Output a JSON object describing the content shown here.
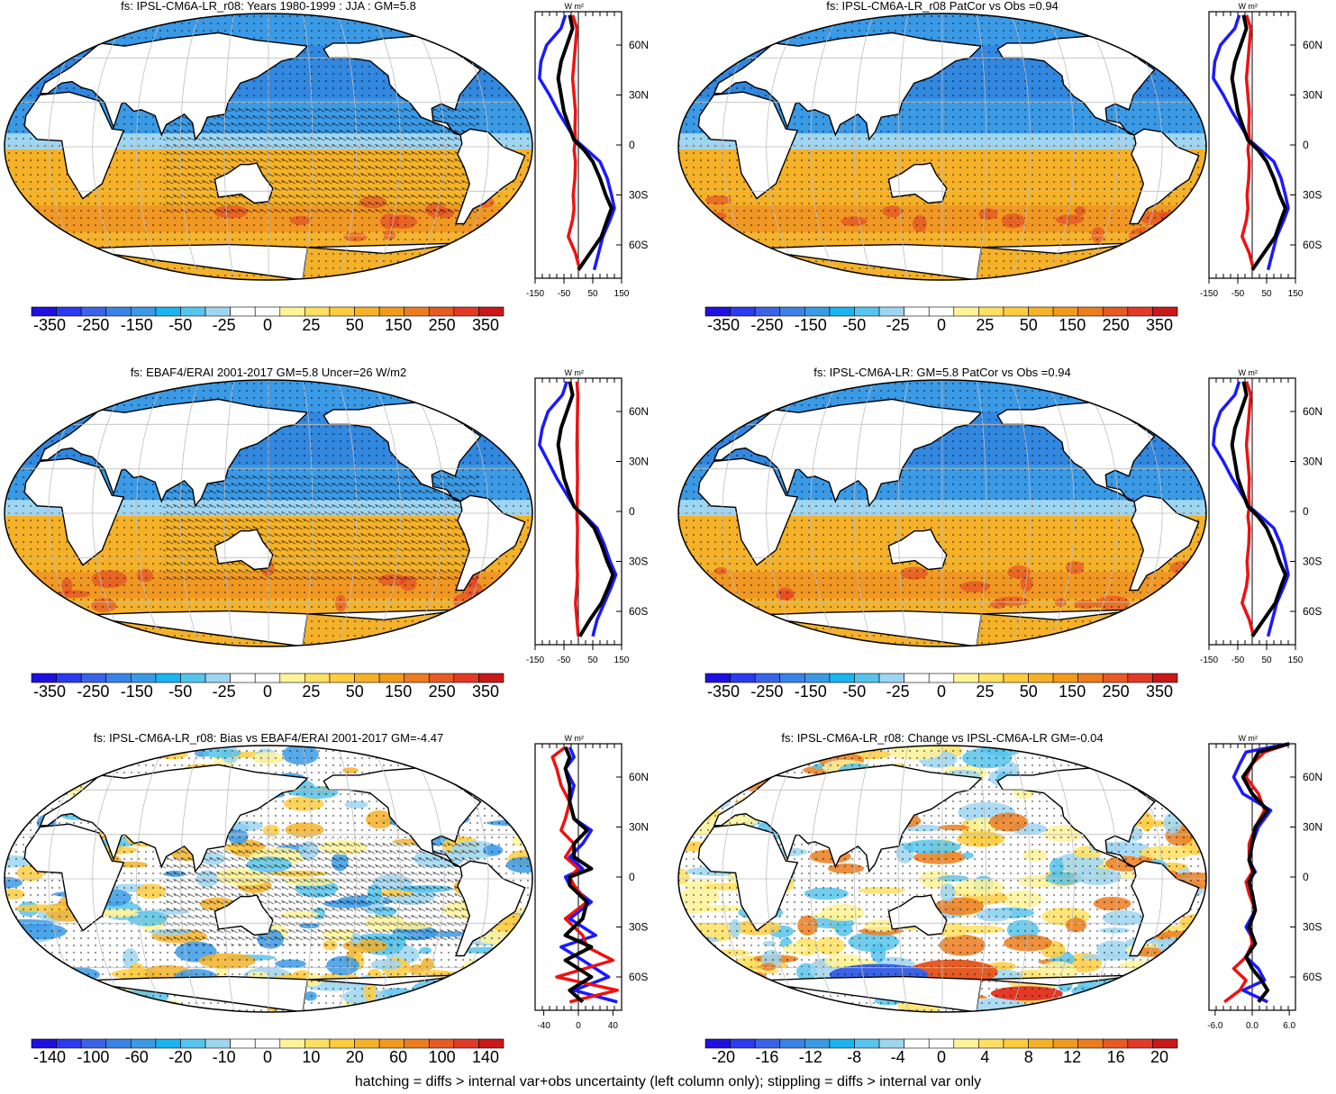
{
  "footnote": "hatching = diffs > internal var+obs uncertainty (left column only); stippling = diffs > internal var only",
  "colors": {
    "blue_line": "#1a1aff",
    "red_line": "#ee1111",
    "black_line": "#000000",
    "ocean_cool": "#3b9ae6",
    "ocean_warm": "#f5b228",
    "palette": [
      "#2010e0",
      "#2a3bf0",
      "#3a63e8",
      "#3a82e6",
      "#3b9ae6",
      "#1ab4f0",
      "#56c4ec",
      "#9ed6f2",
      "#ffffff",
      "#ffffff",
      "#fff39a",
      "#ffe063",
      "#ffcc40",
      "#f5b228",
      "#f19a1c",
      "#eb7d1e",
      "#e65a24",
      "#e23a26",
      "#c81818"
    ]
  },
  "chart_data": [
    {
      "type": "heatmap",
      "title": "fs: IPSL-CM6A-LR_r08: Years 1980-1999 : JJA : GM=5.8",
      "colorbar_labels": [
        "-350",
        "-250",
        "-150",
        "-50",
        "-25",
        "0",
        "25",
        "50",
        "150",
        "250",
        "350"
      ],
      "profile": {
        "unit": "W m²",
        "lat_ticks": [
          "60N",
          "30N",
          "0",
          "30S",
          "60S"
        ],
        "x_ticks": [
          "-150",
          "-50",
          "50",
          "150"
        ],
        "xlim": [
          -150,
          150
        ],
        "series": [
          {
            "color": "blue",
            "lat": [
              -75,
              -65,
              -55,
              -45,
              -38,
              -30,
              -20,
              -10,
              -3,
              3,
              10,
              20,
              30,
              40,
              50,
              60,
              70,
              78
            ],
            "values": [
              55,
              70,
              85,
              110,
              125,
              115,
              100,
              75,
              30,
              -10,
              -35,
              -70,
              -100,
              -135,
              -130,
              -110,
              -60,
              -45
            ]
          },
          {
            "color": "red",
            "lat": [
              -75,
              -65,
              -55,
              -45,
              -38,
              -30,
              -20,
              -10,
              -3,
              3,
              10,
              20,
              30,
              40,
              50,
              60,
              70,
              78
            ],
            "values": [
              5,
              -10,
              -35,
              -20,
              -15,
              -18,
              -12,
              -10,
              -15,
              -10,
              -12,
              -10,
              -15,
              -20,
              -15,
              -10,
              -5,
              -20
            ]
          },
          {
            "color": "black",
            "lat": [
              -75,
              -65,
              -55,
              -45,
              -38,
              -30,
              -20,
              -10,
              -3,
              3,
              10,
              20,
              30,
              40,
              50,
              60,
              70,
              78
            ],
            "values": [
              0,
              40,
              80,
              100,
              115,
              95,
              75,
              50,
              20,
              -15,
              -30,
              -50,
              -60,
              -70,
              -60,
              -40,
              -20,
              -30
            ]
          }
        ]
      }
    },
    {
      "type": "heatmap",
      "title": "fs: IPSL-CM6A-LR_r08 PatCor vs Obs =0.94",
      "colorbar_labels": [
        "-350",
        "-250",
        "-150",
        "-50",
        "-25",
        "0",
        "25",
        "50",
        "150",
        "250",
        "350"
      ],
      "profile": {
        "unit": "W m²",
        "lat_ticks": [
          "60N",
          "30N",
          "0",
          "30S",
          "60S"
        ],
        "x_ticks": [
          "-150",
          "-50",
          "50",
          "150"
        ],
        "xlim": [
          -150,
          150
        ],
        "series": [
          {
            "color": "blue",
            "lat": [
              -75,
              -65,
              -55,
              -45,
              -38,
              -30,
              -20,
              -10,
              -3,
              3,
              10,
              20,
              30,
              40,
              50,
              60,
              70,
              78
            ],
            "values": [
              55,
              70,
              85,
              110,
              125,
              115,
              100,
              75,
              30,
              -10,
              -35,
              -70,
              -100,
              -135,
              -130,
              -110,
              -60,
              -45
            ]
          },
          {
            "color": "red",
            "lat": [
              -75,
              -65,
              -55,
              -45,
              -38,
              -30,
              -20,
              -10,
              -3,
              3,
              10,
              20,
              30,
              40,
              50,
              60,
              70,
              78
            ],
            "values": [
              5,
              -10,
              -35,
              -20,
              -15,
              -18,
              -12,
              -10,
              -15,
              -10,
              -12,
              -10,
              -15,
              -20,
              -15,
              -10,
              -5,
              -20
            ]
          },
          {
            "color": "black",
            "lat": [
              -75,
              -65,
              -55,
              -45,
              -38,
              -30,
              -20,
              -10,
              -3,
              3,
              10,
              20,
              30,
              40,
              50,
              60,
              70,
              78
            ],
            "values": [
              0,
              40,
              80,
              100,
              115,
              95,
              75,
              50,
              20,
              -15,
              -30,
              -50,
              -60,
              -70,
              -60,
              -40,
              -20,
              -30
            ]
          }
        ]
      }
    },
    {
      "type": "heatmap",
      "title": "fs: EBAF4/ERAI 2001-2017 GM=5.8 Uncer=26 W/m2",
      "colorbar_labels": [
        "-350",
        "-250",
        "-150",
        "-50",
        "-25",
        "0",
        "25",
        "50",
        "150",
        "250",
        "350"
      ],
      "profile": {
        "unit": "W m²",
        "lat_ticks": [
          "60N",
          "30N",
          "0",
          "30S",
          "60S"
        ],
        "x_ticks": [
          "-150",
          "-50",
          "50",
          "150"
        ],
        "xlim": [
          -150,
          150
        ],
        "series": [
          {
            "color": "blue",
            "lat": [
              -75,
              -65,
              -55,
              -45,
              -38,
              -30,
              -20,
              -10,
              -3,
              3,
              10,
              20,
              30,
              40,
              50,
              60,
              70,
              78
            ],
            "values": [
              50,
              65,
              90,
              115,
              130,
              110,
              90,
              65,
              25,
              -15,
              -40,
              -75,
              -105,
              -135,
              -125,
              -105,
              -55,
              -40
            ]
          },
          {
            "color": "red",
            "lat": [
              -75,
              -65,
              -55,
              -45,
              -38,
              -30,
              -20,
              -10,
              -3,
              3,
              10,
              20,
              30,
              40,
              50,
              60,
              70,
              78
            ],
            "values": [
              0,
              -5,
              -10,
              -5,
              -3,
              -5,
              -4,
              -3,
              -5,
              -4,
              -4,
              -3,
              -4,
              -5,
              -4,
              -3,
              -2,
              -5
            ]
          },
          {
            "color": "black",
            "lat": [
              -75,
              -65,
              -55,
              -45,
              -38,
              -30,
              -20,
              -10,
              -3,
              3,
              10,
              20,
              30,
              40,
              50,
              60,
              70,
              78
            ],
            "values": [
              5,
              40,
              80,
              105,
              120,
              100,
              80,
              55,
              20,
              -15,
              -30,
              -50,
              -60,
              -70,
              -60,
              -40,
              -20,
              -30
            ]
          }
        ]
      }
    },
    {
      "type": "heatmap",
      "title": "fs: IPSL-CM6A-LR: GM=5.8 PatCor vs Obs =0.94",
      "colorbar_labels": [
        "-350",
        "-250",
        "-150",
        "-50",
        "-25",
        "0",
        "25",
        "50",
        "150",
        "250",
        "350"
      ],
      "profile": {
        "unit": "W m²",
        "lat_ticks": [
          "60N",
          "30N",
          "0",
          "30S",
          "60S"
        ],
        "x_ticks": [
          "-150",
          "-50",
          "50",
          "150"
        ],
        "xlim": [
          -150,
          150
        ],
        "series": [
          {
            "color": "blue",
            "lat": [
              -75,
              -65,
              -55,
              -45,
              -38,
              -30,
              -20,
              -10,
              -3,
              3,
              10,
              20,
              30,
              40,
              50,
              60,
              70,
              78
            ],
            "values": [
              55,
              70,
              85,
              110,
              125,
              115,
              100,
              75,
              30,
              -10,
              -35,
              -70,
              -100,
              -135,
              -130,
              -110,
              -60,
              -45
            ]
          },
          {
            "color": "red",
            "lat": [
              -75,
              -65,
              -55,
              -45,
              -38,
              -30,
              -20,
              -10,
              -3,
              3,
              10,
              20,
              30,
              40,
              50,
              60,
              70,
              78
            ],
            "values": [
              5,
              -10,
              -35,
              -20,
              -15,
              -18,
              -12,
              -10,
              -15,
              -10,
              -12,
              -10,
              -15,
              -20,
              -15,
              -10,
              -5,
              -20
            ]
          },
          {
            "color": "black",
            "lat": [
              -75,
              -65,
              -55,
              -45,
              -38,
              -30,
              -20,
              -10,
              -3,
              3,
              10,
              20,
              30,
              40,
              50,
              60,
              70,
              78
            ],
            "values": [
              0,
              40,
              80,
              100,
              115,
              95,
              75,
              50,
              20,
              -15,
              -30,
              -50,
              -60,
              -70,
              -60,
              -40,
              -20,
              -30
            ]
          }
        ]
      }
    },
    {
      "type": "heatmap",
      "title": "fs: IPSL-CM6A-LR_r08: Bias vs EBAF4/ERAI 2001-2017 GM=-4.47",
      "colorbar_labels": [
        "-140",
        "-100",
        "-60",
        "-20",
        "-10",
        "0",
        "10",
        "20",
        "60",
        "100",
        "140"
      ],
      "profile": {
        "unit": "W m²",
        "lat_ticks": [
          "60N",
          "30N",
          "0",
          "30S",
          "60S"
        ],
        "x_ticks": [
          "-40",
          "0",
          "40"
        ],
        "xlim": [
          -50,
          50
        ],
        "series": [
          {
            "color": "blue",
            "lat": [
              -75,
              -68,
              -60,
              -50,
              -42,
              -35,
              -25,
              -15,
              -5,
              0,
              5,
              12,
              20,
              28,
              35,
              45,
              55,
              65,
              72,
              78
            ],
            "values": [
              45,
              -5,
              35,
              5,
              -20,
              20,
              -10,
              15,
              -10,
              -15,
              5,
              -10,
              5,
              15,
              -5,
              -10,
              -5,
              -15,
              -5,
              -10
            ]
          },
          {
            "color": "red",
            "lat": [
              -75,
              -68,
              -60,
              -50,
              -42,
              -35,
              -25,
              -15,
              -5,
              0,
              5,
              12,
              20,
              28,
              35,
              45,
              55,
              65,
              72,
              78
            ],
            "values": [
              -10,
              45,
              -25,
              40,
              10,
              5,
              -15,
              10,
              -5,
              -10,
              0,
              -15,
              -5,
              -20,
              -15,
              -10,
              -20,
              -25,
              -30,
              -15
            ]
          },
          {
            "color": "black",
            "lat": [
              -75,
              -68,
              -60,
              -50,
              -42,
              -35,
              -25,
              -15,
              -5,
              0,
              5,
              12,
              20,
              28,
              35,
              45,
              55,
              65,
              72,
              78
            ],
            "values": [
              5,
              -10,
              15,
              -15,
              15,
              -15,
              5,
              10,
              -10,
              -10,
              15,
              -5,
              -5,
              10,
              -5,
              -10,
              -10,
              -15,
              -10,
              -15
            ]
          }
        ]
      }
    },
    {
      "type": "heatmap",
      "title": "fs: IPSL-CM6A-LR_r08: Change vs IPSL-CM6A-LR GM=-0.04",
      "colorbar_labels": [
        "-20",
        "-16",
        "-12",
        "-8",
        "-4",
        "0",
        "4",
        "8",
        "12",
        "16",
        "20"
      ],
      "profile": {
        "unit": "W m²",
        "lat_ticks": [
          "60N",
          "30N",
          "0",
          "30S",
          "60S"
        ],
        "x_ticks": [
          "-6.0",
          "0.0",
          "6.0"
        ],
        "xlim": [
          -7,
          7
        ],
        "series": [
          {
            "color": "blue",
            "lat": [
              -75,
              -68,
              -62,
              -55,
              -48,
              -40,
              -30,
              -20,
              -10,
              -3,
              3,
              10,
              20,
              30,
              40,
              50,
              60,
              68,
              75,
              80
            ],
            "values": [
              2.5,
              -1.5,
              2,
              1,
              -1,
              0.5,
              -1,
              0.5,
              0,
              -1,
              0.5,
              -0.5,
              0,
              1,
              3,
              -1.5,
              -3,
              -2,
              -1,
              6.0
            ]
          },
          {
            "color": "red",
            "lat": [
              -75,
              -68,
              -62,
              -55,
              -48,
              -40,
              -30,
              -20,
              -10,
              -3,
              3,
              10,
              20,
              30,
              40,
              50,
              60,
              68,
              75,
              80
            ],
            "values": [
              -4.5,
              -2,
              -1,
              -3,
              -1,
              0,
              -0.5,
              0.5,
              -0.5,
              -1,
              0,
              -0.5,
              -0.5,
              0.5,
              2,
              1,
              -1,
              0,
              2,
              6.0
            ]
          },
          {
            "color": "black",
            "lat": [
              -75,
              -68,
              -62,
              -55,
              -48,
              -40,
              -30,
              -20,
              -10,
              -3,
              3,
              10,
              20,
              30,
              40,
              50,
              60,
              68,
              75,
              80
            ],
            "values": [
              1,
              2.5,
              1.5,
              0,
              -1,
              0.5,
              -0.5,
              0.5,
              0,
              -0.5,
              0.3,
              -0.5,
              0,
              0.5,
              2.5,
              0,
              -1.5,
              0,
              1,
              6.0
            ]
          }
        ]
      }
    }
  ]
}
